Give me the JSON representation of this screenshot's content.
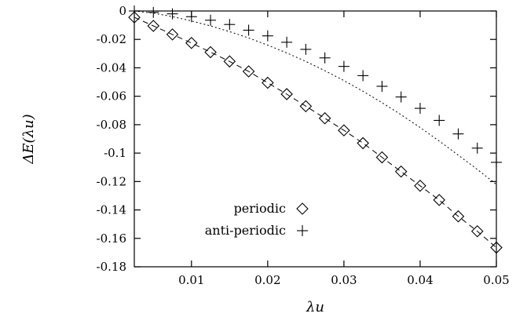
{
  "chart_data": {
    "type": "scatter",
    "xlabel": "λu",
    "ylabel": "ΔE(λu)",
    "xlim": [
      0.0025,
      0.05
    ],
    "ylim": [
      -0.18,
      0
    ],
    "x_ticks": [
      0.01,
      0.02,
      0.03,
      0.04,
      0.05
    ],
    "x_tick_labels": [
      "0.01",
      "0.02",
      "0.03",
      "0.04",
      "0.05"
    ],
    "y_ticks": [
      0,
      -0.02,
      -0.04,
      -0.06,
      -0.08,
      -0.1,
      -0.12,
      -0.14,
      -0.16,
      -0.18
    ],
    "y_tick_labels": [
      "0",
      "-0.02",
      "-0.04",
      "-0.06",
      "-0.08",
      "-0.1",
      "-0.12",
      "-0.14",
      "-0.16",
      "-0.18"
    ],
    "grid": false,
    "legend_position": "bottom-left",
    "series": [
      {
        "name": "periodic",
        "marker": "diamond",
        "x": [
          0.0025,
          0.005,
          0.0075,
          0.01,
          0.0125,
          0.015,
          0.0175,
          0.02,
          0.0225,
          0.025,
          0.0275,
          0.03,
          0.0325,
          0.035,
          0.0375,
          0.04,
          0.0425,
          0.045,
          0.0475,
          0.05
        ],
        "y": [
          -0.0045,
          -0.0105,
          -0.0165,
          -0.0225,
          -0.029,
          -0.0355,
          -0.0425,
          -0.0505,
          -0.0585,
          -0.067,
          -0.0755,
          -0.084,
          -0.093,
          -0.103,
          -0.113,
          -0.123,
          -0.133,
          -0.1445,
          -0.155,
          -0.1665
        ]
      },
      {
        "name": "anti-periodic",
        "marker": "plus",
        "x": [
          0.0025,
          0.005,
          0.0075,
          0.01,
          0.0125,
          0.015,
          0.0175,
          0.02,
          0.0225,
          0.025,
          0.0275,
          0.03,
          0.0325,
          0.035,
          0.0375,
          0.04,
          0.0425,
          0.045,
          0.0475,
          0.05
        ],
        "y": [
          0.0,
          -0.001,
          -0.002,
          -0.004,
          -0.0065,
          -0.0095,
          -0.0135,
          -0.0175,
          -0.022,
          -0.027,
          -0.033,
          -0.039,
          -0.0455,
          -0.053,
          -0.0605,
          -0.0685,
          -0.077,
          -0.0865,
          -0.0965,
          -0.1065
        ]
      }
    ],
    "fit_lines": [
      {
        "style": "dashed",
        "x": [
          0.0025,
          0.005,
          0.0075,
          0.01,
          0.0125,
          0.015,
          0.0175,
          0.02,
          0.0225,
          0.025,
          0.0275,
          0.03,
          0.0325,
          0.035,
          0.0375,
          0.04,
          0.0425,
          0.045,
          0.0475,
          0.05
        ],
        "y": [
          -0.0045,
          -0.0105,
          -0.0165,
          -0.0225,
          -0.029,
          -0.0355,
          -0.0425,
          -0.0505,
          -0.0585,
          -0.067,
          -0.0755,
          -0.084,
          -0.093,
          -0.103,
          -0.113,
          -0.123,
          -0.133,
          -0.1445,
          -0.155,
          -0.1665
        ]
      },
      {
        "style": "dotted",
        "x": [
          0.0025,
          0.005,
          0.0075,
          0.01,
          0.0125,
          0.015,
          0.0175,
          0.02,
          0.0225,
          0.025,
          0.0275,
          0.03,
          0.0325,
          0.035,
          0.0375,
          0.04,
          0.0425,
          0.045,
          0.0475,
          0.05
        ],
        "y": [
          0.0,
          -0.0015,
          -0.004,
          -0.007,
          -0.0105,
          -0.0145,
          -0.019,
          -0.024,
          -0.0295,
          -0.0355,
          -0.042,
          -0.049,
          -0.0565,
          -0.0645,
          -0.073,
          -0.082,
          -0.0915,
          -0.1015,
          -0.1115,
          -0.122
        ]
      }
    ]
  }
}
